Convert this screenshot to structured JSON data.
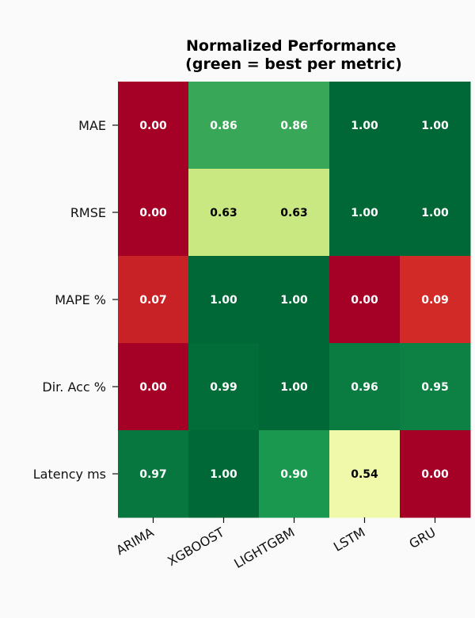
{
  "chart_data": {
    "type": "heatmap",
    "title": "Normalized Performance\n(green = best per metric)",
    "xlabel": "",
    "ylabel": "",
    "columns": [
      "ARIMA",
      "XGBOOST",
      "LIGHTGBM",
      "LSTM",
      "GRU"
    ],
    "rows": [
      "MAE",
      "RMSE",
      "MAPE %",
      "Dir. Acc %",
      "Latency ms"
    ],
    "values": [
      [
        0.0,
        0.86,
        0.86,
        1.0,
        1.0
      ],
      [
        0.0,
        0.63,
        0.63,
        1.0,
        1.0
      ],
      [
        0.07,
        1.0,
        1.0,
        0.0,
        0.09
      ],
      [
        0.0,
        0.99,
        1.0,
        0.96,
        0.95
      ],
      [
        0.97,
        1.0,
        0.9,
        0.54,
        0.0
      ]
    ],
    "value_format": "0.00",
    "colormap": "RdYlGn",
    "vmin": 0,
    "vmax": 1,
    "grid": false,
    "colors": {
      "background": "#fafafa",
      "text_dark": "#000000",
      "text_light": "#ffffff"
    }
  }
}
